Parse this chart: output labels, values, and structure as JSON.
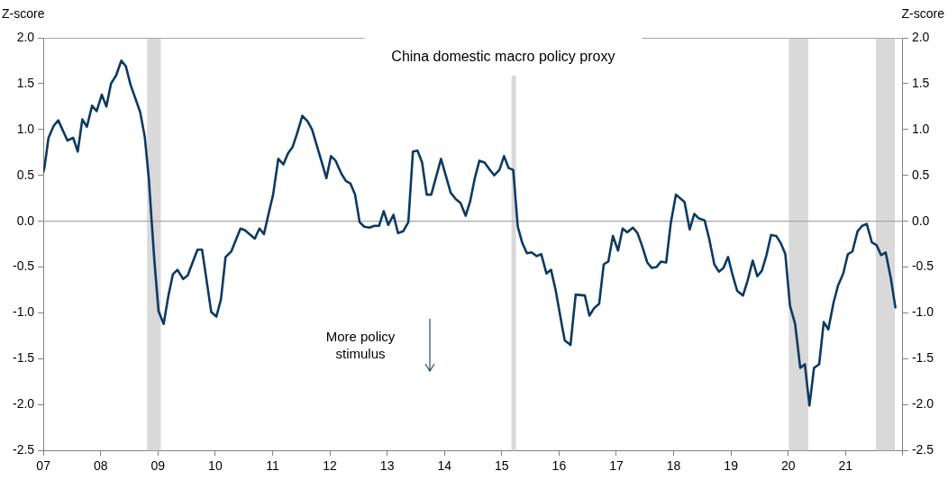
{
  "chart_data": {
    "type": "line",
    "title": "China domestic macro policy proxy",
    "ylabel": "Z-score",
    "y2label": "Z-score",
    "annotations": [
      "More policy stimulus"
    ],
    "xlim": [
      2007,
      2022
    ],
    "xticks": [
      {
        "value": 2007,
        "label": "07"
      },
      {
        "value": 2008,
        "label": "08"
      },
      {
        "value": 2009,
        "label": "09"
      },
      {
        "value": 2010,
        "label": "10"
      },
      {
        "value": 2011,
        "label": "11"
      },
      {
        "value": 2012,
        "label": "12"
      },
      {
        "value": 2013,
        "label": "13"
      },
      {
        "value": 2014,
        "label": "14"
      },
      {
        "value": 2015,
        "label": "15"
      },
      {
        "value": 2016,
        "label": "16"
      },
      {
        "value": 2017,
        "label": "17"
      },
      {
        "value": 2018,
        "label": "18"
      },
      {
        "value": 2019,
        "label": "19"
      },
      {
        "value": 2020,
        "label": "20"
      },
      {
        "value": 2021,
        "label": "21"
      },
      {
        "value": 2022,
        "label": null
      }
    ],
    "ylim": [
      -2.5,
      2.0
    ],
    "yticks": [
      {
        "value": -2.5,
        "label": "-2.5"
      },
      {
        "value": -2,
        "label": "-2.0"
      },
      {
        "value": -1.5,
        "label": "-1.5"
      },
      {
        "value": -1,
        "label": "-1.0"
      },
      {
        "value": -0.5,
        "label": "-0.5"
      },
      {
        "value": 0,
        "label": "0.0"
      },
      {
        "value": 0.5,
        "label": "0.5"
      },
      {
        "value": 1,
        "label": "1.0"
      },
      {
        "value": 1.5,
        "label": "1.5"
      },
      {
        "value": 2,
        "label": "2.0"
      }
    ],
    "y2lim": [
      -2.5,
      2.0
    ],
    "y2ticks": [
      {
        "value": -2.5,
        "label": "-2.5"
      },
      {
        "value": -2,
        "label": "-2.0"
      },
      {
        "value": -1.5,
        "label": "-1.5"
      },
      {
        "value": -1,
        "label": "-1.0"
      },
      {
        "value": -0.5,
        "label": "-0.5"
      },
      {
        "value": 0,
        "label": "0.0"
      },
      {
        "value": 0.5,
        "label": "0.5"
      },
      {
        "value": 1,
        "label": "1.0"
      },
      {
        "value": 1.5,
        "label": "1.5"
      },
      {
        "value": 2,
        "label": "2.0"
      }
    ],
    "grid": false,
    "legend": false,
    "marker": "none",
    "line_style": "solid",
    "ref_lines": [
      {
        "axis": "y",
        "value": 0,
        "color": "#a6a6a6"
      }
    ],
    "bands": [
      {
        "axis": "x",
        "from": 2008.81,
        "to": 2009.05,
        "color": "#d9d9d9"
      },
      {
        "axis": "x",
        "from": 2015.17,
        "to": 2015.25,
        "color": "#d9d9d9"
      },
      {
        "axis": "x",
        "from": 2020.01,
        "to": 2020.35,
        "color": "#d9d9d9"
      },
      {
        "axis": "x",
        "from": 2021.53,
        "to": 2021.86,
        "color": "#d9d9d9"
      }
    ],
    "series": [
      {
        "color": "#0b3a62",
        "x": [
          2007.0,
          2007.02,
          2007.09,
          2007.18,
          2007.26,
          2007.42,
          2007.52,
          2007.6,
          2007.68,
          2007.76,
          2007.85,
          2007.93,
          2008.02,
          2008.1,
          2008.18,
          2008.27,
          2008.36,
          2008.44,
          2008.52,
          2008.69,
          2008.77,
          2008.84,
          2008.89,
          2008.94,
          2009.01,
          2009.1,
          2009.18,
          2009.26,
          2009.34,
          2009.44,
          2009.52,
          2009.61,
          2009.69,
          2009.77,
          2009.85,
          2009.93,
          2010.02,
          2010.1,
          2010.18,
          2010.28,
          2010.44,
          2010.52,
          2010.69,
          2010.77,
          2010.85,
          2010.93,
          2011.01,
          2011.1,
          2011.19,
          2011.27,
          2011.35,
          2011.43,
          2011.52,
          2011.61,
          2011.69,
          2011.86,
          2011.94,
          2012.02,
          2012.1,
          2012.2,
          2012.28,
          2012.36,
          2012.44,
          2012.52,
          2012.6,
          2012.69,
          2012.78,
          2012.86,
          2012.94,
          2013.02,
          2013.11,
          2013.19,
          2013.28,
          2013.37,
          2013.45,
          2013.53,
          2013.61,
          2013.69,
          2013.77,
          2013.94,
          2014.11,
          2014.2,
          2014.28,
          2014.37,
          2014.45,
          2014.53,
          2014.61,
          2014.7,
          2014.78,
          2014.87,
          2014.96,
          2015.04,
          2015.12,
          2015.2,
          2015.28,
          2015.36,
          2015.44,
          2015.52,
          2015.61,
          2015.69,
          2015.78,
          2015.86,
          2015.94,
          2016.06,
          2016.1,
          2016.2,
          2016.29,
          2016.45,
          2016.53,
          2016.61,
          2016.7,
          2016.78,
          2016.86,
          2016.94,
          2017.03,
          2017.11,
          2017.19,
          2017.29,
          2017.37,
          2017.45,
          2017.54,
          2017.62,
          2017.7,
          2017.78,
          2017.87,
          2017.95,
          2018.04,
          2018.19,
          2018.28,
          2018.36,
          2018.44,
          2018.54,
          2018.62,
          2018.71,
          2018.79,
          2018.87,
          2018.95,
          2019.03,
          2019.11,
          2019.21,
          2019.29,
          2019.38,
          2019.46,
          2019.54,
          2019.62,
          2019.7,
          2019.79,
          2019.87,
          2019.95,
          2020.03,
          2020.12,
          2020.21,
          2020.29,
          2020.37,
          2020.45,
          2020.54,
          2020.62,
          2020.7,
          2020.79,
          2020.87,
          2020.96,
          2021.04,
          2021.12,
          2021.21,
          2021.29,
          2021.37,
          2021.46,
          2021.54,
          2021.62,
          2021.7,
          2021.79,
          2021.87
        ],
        "values": [
          0.54,
          0.59,
          0.91,
          1.04,
          1.1,
          0.88,
          0.91,
          0.76,
          1.11,
          1.03,
          1.26,
          1.2,
          1.38,
          1.25,
          1.5,
          1.59,
          1.75,
          1.69,
          1.49,
          1.19,
          0.92,
          0.47,
          0.0,
          -0.45,
          -0.98,
          -1.12,
          -0.82,
          -0.58,
          -0.53,
          -0.63,
          -0.59,
          -0.44,
          -0.31,
          -0.31,
          -0.65,
          -0.99,
          -1.04,
          -0.85,
          -0.39,
          -0.33,
          -0.08,
          -0.1,
          -0.19,
          -0.08,
          -0.14,
          0.08,
          0.29,
          0.68,
          0.62,
          0.74,
          0.81,
          0.96,
          1.15,
          1.09,
          1.0,
          0.64,
          0.47,
          0.71,
          0.66,
          0.52,
          0.44,
          0.41,
          0.29,
          -0.01,
          -0.06,
          -0.07,
          -0.05,
          -0.05,
          0.11,
          -0.04,
          0.07,
          -0.13,
          -0.11,
          -0.01,
          0.76,
          0.77,
          0.64,
          0.29,
          0.29,
          0.68,
          0.31,
          0.24,
          0.2,
          0.06,
          0.22,
          0.47,
          0.66,
          0.64,
          0.57,
          0.5,
          0.56,
          0.71,
          0.58,
          0.56,
          -0.06,
          -0.24,
          -0.35,
          -0.34,
          -0.38,
          -0.36,
          -0.57,
          -0.53,
          -0.75,
          -1.17,
          -1.3,
          -1.35,
          -0.8,
          -0.81,
          -1.03,
          -0.95,
          -0.9,
          -0.47,
          -0.44,
          -0.16,
          -0.32,
          -0.08,
          -0.12,
          -0.07,
          -0.13,
          -0.27,
          -0.45,
          -0.51,
          -0.5,
          -0.44,
          -0.45,
          -0.02,
          0.29,
          0.21,
          -0.09,
          0.08,
          0.03,
          0.01,
          -0.19,
          -0.47,
          -0.55,
          -0.51,
          -0.39,
          -0.59,
          -0.76,
          -0.81,
          -0.65,
          -0.43,
          -0.6,
          -0.54,
          -0.37,
          -0.15,
          -0.16,
          -0.24,
          -0.36,
          -0.92,
          -1.12,
          -1.6,
          -1.56,
          -2.01,
          -1.6,
          -1.56,
          -1.1,
          -1.18,
          -0.89,
          -0.7,
          -0.57,
          -0.36,
          -0.33,
          -0.11,
          -0.05,
          -0.03,
          -0.23,
          -0.26,
          -0.37,
          -0.34,
          -0.62,
          -0.94
        ]
      }
    ]
  }
}
